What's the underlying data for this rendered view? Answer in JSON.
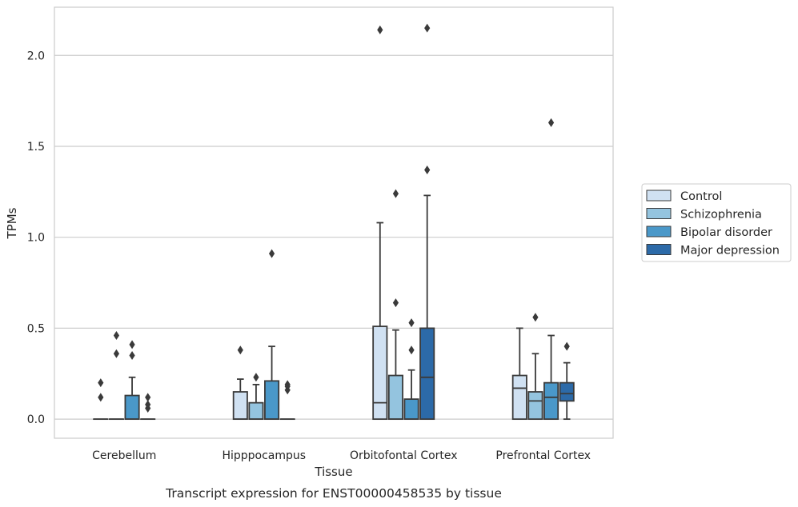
{
  "chart_data": {
    "type": "box",
    "xlabel": "Tissue",
    "ylabel": "TPMs",
    "caption": "Transcript expression for ENST00000458535 by tissue",
    "categories": [
      "Cerebellum",
      "Hipppocampus",
      "Orbitofontal Cortex",
      "Prefrontal Cortex"
    ],
    "yticks": [
      0.0,
      0.5,
      1.0,
      1.5,
      2.0
    ],
    "ytick_labels": [
      "0.0",
      "0.5",
      "1.0",
      "1.5",
      "2.0"
    ],
    "ylim": [
      -0.105,
      2.265
    ],
    "grid": "horizontal",
    "legend_position": "right",
    "colors": {
      "Control": "#d0e1f2",
      "Schizophrenia": "#94c4df",
      "Bipolar disorder": "#4a98c9",
      "Major depression": "#2c6aa8",
      "box_edge": "#3a3a3a",
      "grid": "#cccccc",
      "frame": "#cccccc"
    },
    "series": [
      {
        "name": "Control",
        "boxes": [
          {
            "q1": 0.0,
            "median": 0.0,
            "q3": 0.0,
            "whislo": 0.0,
            "whishi": 0.0,
            "fliers": [
              0.12,
              0.2
            ]
          },
          {
            "q1": 0.0,
            "median": 0.0,
            "q3": 0.15,
            "whislo": 0.0,
            "whishi": 0.22,
            "fliers": [
              0.38
            ]
          },
          {
            "q1": 0.0,
            "median": 0.09,
            "q3": 0.51,
            "whislo": 0.0,
            "whishi": 1.08,
            "fliers": [
              2.14
            ]
          },
          {
            "q1": 0.0,
            "median": 0.17,
            "q3": 0.24,
            "whislo": 0.0,
            "whishi": 0.5,
            "fliers": []
          }
        ]
      },
      {
        "name": "Schizophrenia",
        "boxes": [
          {
            "q1": 0.0,
            "median": 0.0,
            "q3": 0.0,
            "whislo": 0.0,
            "whishi": 0.0,
            "fliers": [
              0.36,
              0.46
            ]
          },
          {
            "q1": 0.0,
            "median": 0.0,
            "q3": 0.09,
            "whislo": 0.0,
            "whishi": 0.19,
            "fliers": [
              0.23
            ]
          },
          {
            "q1": 0.0,
            "median": 0.0,
            "q3": 0.24,
            "whislo": 0.0,
            "whishi": 0.49,
            "fliers": [
              0.64,
              1.24
            ]
          },
          {
            "q1": 0.0,
            "median": 0.1,
            "q3": 0.15,
            "whislo": 0.0,
            "whishi": 0.36,
            "fliers": [
              0.56
            ]
          }
        ]
      },
      {
        "name": "Bipolar disorder",
        "boxes": [
          {
            "q1": 0.0,
            "median": 0.0,
            "q3": 0.13,
            "whislo": 0.0,
            "whishi": 0.23,
            "fliers": [
              0.35,
              0.41
            ]
          },
          {
            "q1": 0.0,
            "median": 0.0,
            "q3": 0.21,
            "whislo": 0.0,
            "whishi": 0.4,
            "fliers": [
              0.91
            ]
          },
          {
            "q1": 0.0,
            "median": 0.0,
            "q3": 0.11,
            "whislo": 0.0,
            "whishi": 0.27,
            "fliers": [
              0.38,
              0.53
            ]
          },
          {
            "q1": 0.0,
            "median": 0.12,
            "q3": 0.2,
            "whislo": 0.0,
            "whishi": 0.46,
            "fliers": [
              1.63
            ]
          }
        ]
      },
      {
        "name": "Major depression",
        "boxes": [
          {
            "q1": 0.0,
            "median": 0.0,
            "q3": 0.0,
            "whislo": 0.0,
            "whishi": 0.0,
            "fliers": [
              0.06,
              0.08,
              0.12
            ]
          },
          {
            "q1": 0.0,
            "median": 0.0,
            "q3": 0.0,
            "whislo": 0.0,
            "whishi": 0.0,
            "fliers": [
              0.16,
              0.18,
              0.19
            ]
          },
          {
            "q1": 0.0,
            "median": 0.23,
            "q3": 0.5,
            "whislo": 0.0,
            "whishi": 1.23,
            "fliers": [
              1.37,
              2.15
            ]
          },
          {
            "q1": 0.1,
            "median": 0.14,
            "q3": 0.2,
            "whislo": 0.0,
            "whishi": 0.31,
            "fliers": [
              0.4
            ]
          }
        ]
      }
    ]
  }
}
